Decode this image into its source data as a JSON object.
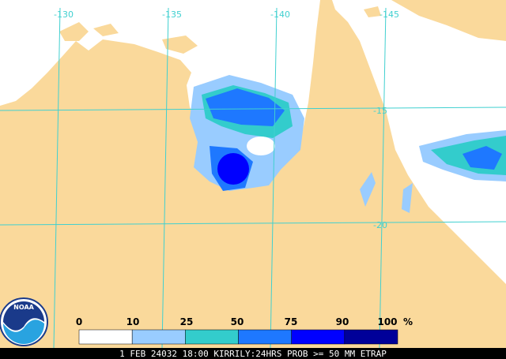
{
  "map": {
    "longitude_labels": [
      "-130",
      "-135",
      "-140",
      "-145"
    ],
    "latitude_labels": [
      "-15",
      "-20"
    ],
    "legend": {
      "labels": [
        0,
        10,
        25,
        50,
        75,
        90,
        100
      ],
      "unit": "%",
      "colors": [
        "#ffffff",
        "#99ccff",
        "#33cccc",
        "#1e78ff",
        "#0000ff",
        "#000099"
      ]
    },
    "caption": "1 FEB 24032 18:00 KIRRILY:24HRS PROB >= 50 MM ETRAP",
    "logo": "NOAA"
  }
}
